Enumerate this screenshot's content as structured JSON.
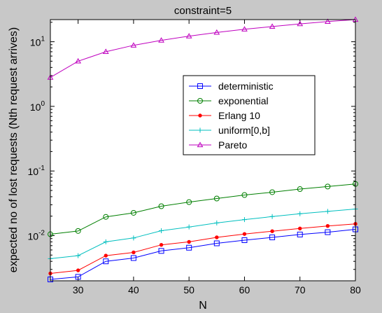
{
  "chart_data": {
    "type": "line",
    "title": "constraint=5",
    "xlabel": "N",
    "ylabel": "expected no of lost requests (Nth request arrives)",
    "x": [
      25,
      30,
      35,
      40,
      45,
      50,
      55,
      60,
      65,
      70,
      75,
      80
    ],
    "xlim": [
      25,
      80
    ],
    "ylim": [
      0.002,
      22
    ],
    "yscale": "log",
    "x_ticks": [
      30,
      40,
      50,
      60,
      70,
      80
    ],
    "y_ticks": [
      {
        "value": 0.01,
        "base": "10",
        "exp": "-2"
      },
      {
        "value": 0.1,
        "base": "10",
        "exp": "-1"
      },
      {
        "value": 1,
        "base": "10",
        "exp": "0"
      },
      {
        "value": 10,
        "base": "10",
        "exp": "1"
      }
    ],
    "grid": false,
    "legend_position": "center-right",
    "series": [
      {
        "name": "deterministic",
        "color": "#0000ff",
        "marker": "square",
        "values": [
          0.0021,
          0.0023,
          0.004,
          0.0045,
          0.0058,
          0.0065,
          0.0076,
          0.0085,
          0.0094,
          0.0104,
          0.0113,
          0.0125
        ]
      },
      {
        "name": "exponential",
        "color": "#007f00",
        "marker": "circle",
        "values": [
          0.0105,
          0.0118,
          0.0195,
          0.0225,
          0.0285,
          0.033,
          0.0375,
          0.0425,
          0.047,
          0.0525,
          0.0575,
          0.063
        ]
      },
      {
        "name": "Erlang 10",
        "color": "#ff0000",
        "marker": "dot",
        "values": [
          0.0026,
          0.0029,
          0.0049,
          0.0055,
          0.0072,
          0.008,
          0.0094,
          0.0106,
          0.0117,
          0.0129,
          0.0141,
          0.0152
        ]
      },
      {
        "name": "uniform[0,b]",
        "color": "#00bfbf",
        "marker": "plus",
        "values": [
          0.0044,
          0.0049,
          0.008,
          0.0092,
          0.0119,
          0.0136,
          0.0157,
          0.0177,
          0.0197,
          0.0218,
          0.0237,
          0.0258
        ]
      },
      {
        "name": "Pareto",
        "color": "#bf00bf",
        "marker": "triangle",
        "values": [
          2.8,
          5.0,
          7.0,
          8.8,
          10.5,
          12.2,
          13.9,
          15.6,
          17.2,
          18.9,
          20.5,
          22.0
        ]
      }
    ]
  }
}
